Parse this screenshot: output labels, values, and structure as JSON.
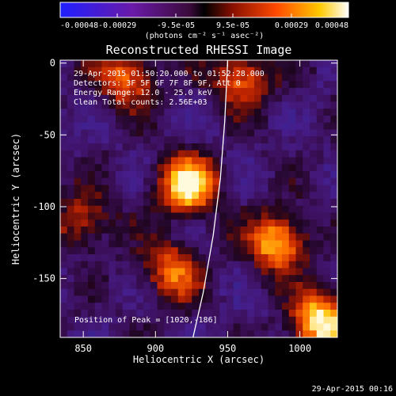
{
  "chart_data": {
    "type": "heatmap",
    "title": "Reconstructed RHESSI Image",
    "xlabel": "Heliocentric X (arcsec)",
    "ylabel": "Heliocentric Y (arcsec)",
    "xlim": [
      834,
      1026
    ],
    "ylim": [
      -191,
      2
    ],
    "x_ticks": [
      "850",
      "900",
      "950",
      "1000"
    ],
    "y_ticks": [
      "0",
      "-50",
      "-100",
      "-150"
    ],
    "colorbar": {
      "label": "(photons cm⁻² s⁻¹ asec⁻²)",
      "range": [
        -0.00048,
        0.00048
      ],
      "tick_labels": [
        "-0.00048",
        "-0.00029",
        "-9.5e-05",
        "9.5e-05",
        "0.00029",
        "0.00048"
      ]
    },
    "annotations": {
      "time_range": "29-Apr-2015 01:50:20.000 to 01:52:28.000",
      "detectors": "Detectors: 3F 5F 6F 7F 8F 9F, Att 0",
      "energy_range": "Energy Range: 12.0 - 25.0 keV",
      "clean_counts": "Clean    Total counts: 2.56E+03",
      "peak": "Position of Peak = [1020,-186]"
    },
    "limb_curve": [
      [
        950,
        2
      ],
      [
        948,
        -40
      ],
      [
        945,
        -80
      ],
      [
        940,
        -120
      ],
      [
        933,
        -160
      ],
      [
        926,
        -191
      ]
    ],
    "sources": [
      {
        "x": 922,
        "y": -85,
        "intensity": 0.00046
      },
      {
        "x": 985,
        "y": -125,
        "intensity": 0.0004
      },
      {
        "x": 1015,
        "y": -180,
        "intensity": 0.00048
      },
      {
        "x": 912,
        "y": -145,
        "intensity": 0.0003
      },
      {
        "x": 880,
        "y": -10,
        "intensity": 0.0003
      },
      {
        "x": 960,
        "y": -10,
        "intensity": 0.0003
      },
      {
        "x": 850,
        "y": -110,
        "intensity": 0.00022
      }
    ],
    "footer_timestamp": "29-Apr-2015 00:16"
  }
}
